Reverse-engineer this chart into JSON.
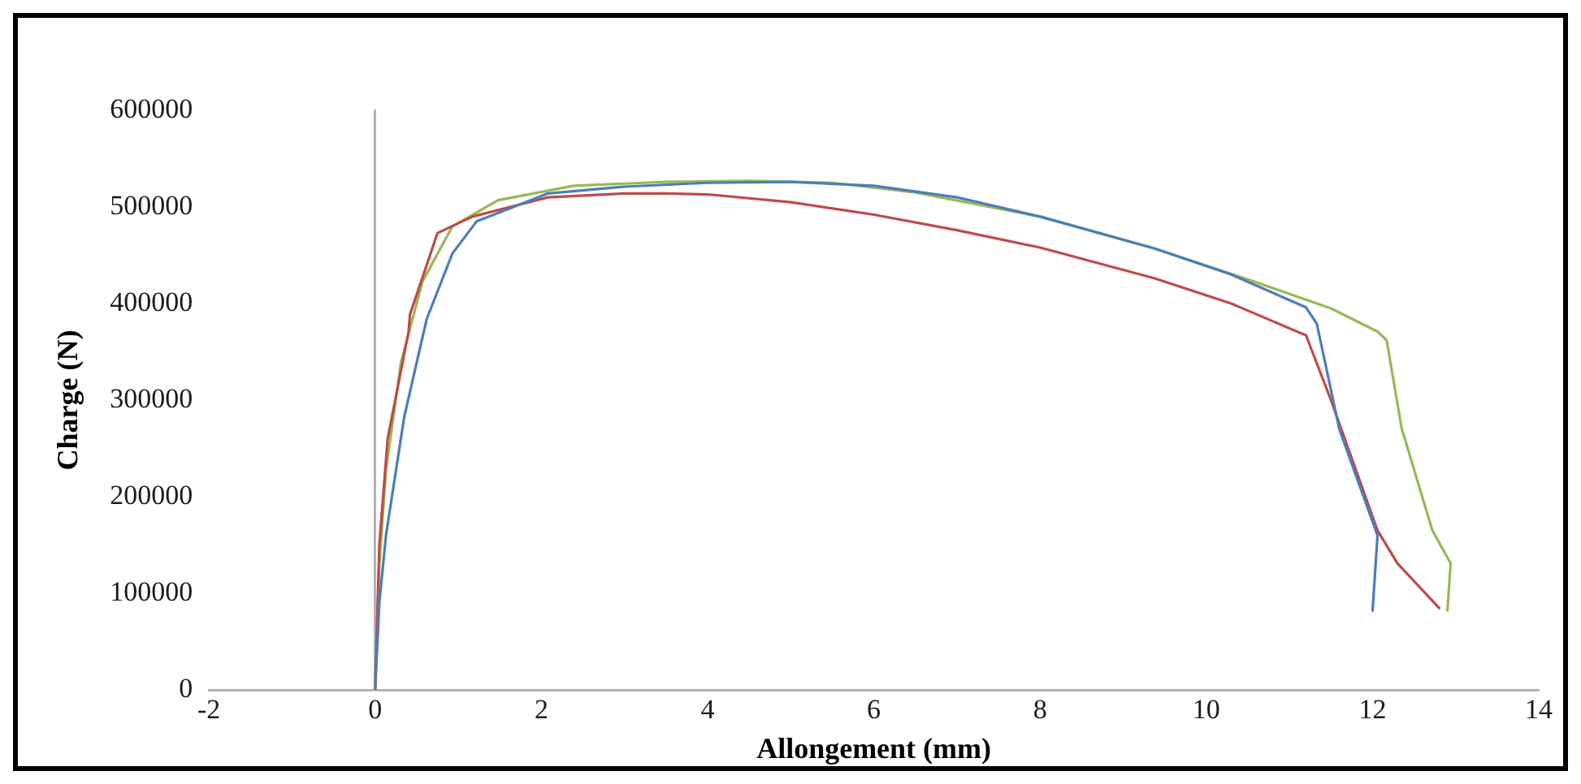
{
  "chart_data": {
    "type": "line",
    "xlabel": "Allongement (mm)",
    "ylabel": "Charge (N)",
    "xlim": [
      -2,
      14
    ],
    "xticks": [
      -2,
      0,
      2,
      4,
      6,
      8,
      10,
      12,
      14
    ],
    "ylim": [
      0,
      600000
    ],
    "yticks": [
      0,
      100000,
      200000,
      300000,
      400000,
      500000,
      600000
    ],
    "legend": false,
    "series": [
      {
        "color": "#4a7ebb",
        "x": [
          0,
          0.05,
          0.13,
          0.35,
          0.62,
          0.93,
          1.22,
          2.08,
          3,
          4,
          5,
          6,
          7,
          8,
          9.38,
          10.3,
          11.2,
          11.33,
          11.6,
          12.06,
          12.0
        ],
        "values": [
          0,
          90000,
          160000,
          283000,
          384000,
          452000,
          485000,
          514000,
          521000,
          525000,
          526000,
          522000,
          510000,
          490000,
          457000,
          430000,
          396000,
          379000,
          270000,
          160000,
          81000
        ]
      },
      {
        "color": "#be4b48",
        "x": [
          0,
          0.05,
          0.15,
          0.4,
          0.42,
          0.75,
          1.17,
          2.08,
          3,
          3.5,
          4,
          5,
          6,
          7,
          8,
          9.38,
          10.3,
          11.2,
          11.5,
          12.06,
          12.3,
          12.81
        ],
        "values": [
          0,
          150000,
          260000,
          370000,
          389000,
          473000,
          490000,
          510000,
          514000,
          514000,
          513000,
          505000,
          492000,
          476000,
          458000,
          426000,
          400000,
          367000,
          300000,
          165000,
          131000,
          84000
        ]
      },
      {
        "color": "#98b954",
        "x": [
          0,
          0.05,
          0.13,
          0.31,
          0.57,
          0.93,
          1.48,
          2.39,
          3.5,
          4.5,
          5.5,
          6.5,
          8,
          9.38,
          10.5,
          11.5,
          12.06,
          12.17,
          12.35,
          12.72,
          12.94,
          12.9
        ],
        "values": [
          0,
          130000,
          227000,
          339000,
          423000,
          480000,
          507000,
          522000,
          526000,
          527000,
          525000,
          515000,
          490000,
          457000,
          425000,
          395000,
          371000,
          362000,
          271000,
          165000,
          131000,
          81000
        ]
      }
    ]
  }
}
